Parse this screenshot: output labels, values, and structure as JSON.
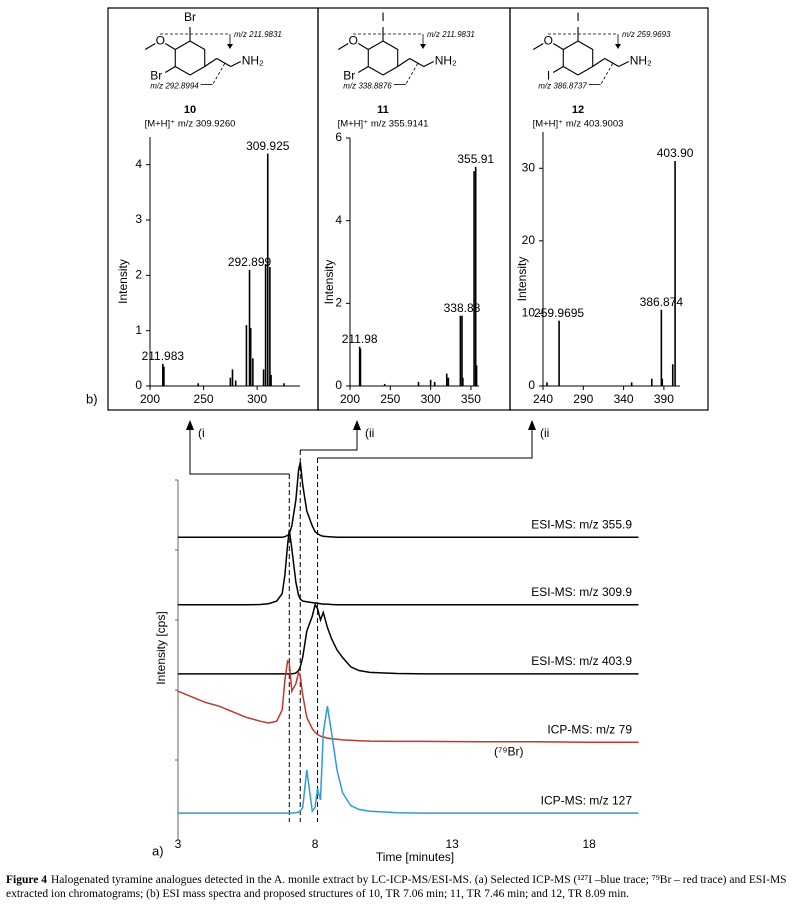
{
  "panel_labels": {
    "b": "b)",
    "a": "a)"
  },
  "structures": [
    {
      "top": "Br",
      "bottom": "Br",
      "oxygen": "O",
      "amine": "NH₂",
      "fragment_top": "m/z 211.9831",
      "fragment_bottom": "m/z 292.8994",
      "compound": "10",
      "ion": "[M+H]⁺ m/z 309.9260"
    },
    {
      "top": "I",
      "bottom": "Br",
      "oxygen": "O",
      "amine": "NH₂",
      "fragment_top": "m/z 211.9831",
      "fragment_bottom": "m/z 338.8876",
      "compound": "11",
      "ion": "[M+H]⁺ m/z 355.9141"
    },
    {
      "top": "I",
      "bottom": "I",
      "oxygen": "O",
      "amine": "NH₂",
      "fragment_top": "m/z 259.9693",
      "fragment_bottom": "m/z 386.8737",
      "compound": "12",
      "ion": "[M+H]⁺ m/z 403.9003"
    }
  ],
  "chart_data": [
    {
      "type": "bar",
      "y_label": "Intensity",
      "color": "#000000",
      "x": [
        211.98,
        213,
        245,
        275,
        277,
        280,
        290,
        292.9,
        294,
        296,
        306,
        307.9,
        309.9,
        311.9,
        313,
        325
      ],
      "values": [
        0.4,
        0.35,
        0.05,
        0.15,
        0.3,
        0.1,
        1.1,
        2.1,
        1.05,
        0.5,
        0.3,
        2.2,
        4.2,
        2.15,
        0.2,
        0.05
      ],
      "annotations": [
        {
          "text": "211.983",
          "x": 211.983,
          "y": 0.4
        },
        {
          "text": "292.899",
          "x": 292.899,
          "y": 2.1
        },
        {
          "text": "309.925",
          "x": 309.925,
          "y": 4.2
        }
      ],
      "xlim": [
        200,
        340
      ],
      "xticks": [
        200,
        250,
        300
      ],
      "ylim": [
        0,
        4.5
      ],
      "yticks": [
        0,
        1,
        2,
        3,
        4
      ]
    },
    {
      "type": "bar",
      "y_label": "Intensity",
      "color": "#000000",
      "x": [
        211.98,
        213,
        243,
        285,
        300,
        305,
        320,
        322,
        336.9,
        338.9,
        340,
        353.9,
        355.9,
        357
      ],
      "values": [
        0.95,
        0.9,
        0.05,
        0.1,
        0.15,
        0.1,
        0.3,
        0.2,
        1.7,
        1.7,
        0.2,
        5.2,
        5.3,
        0.5
      ],
      "annotations": [
        {
          "text": "211.98",
          "x": 211.98,
          "y": 0.95
        },
        {
          "text": "338.88",
          "x": 338.88,
          "y": 1.7
        },
        {
          "text": "355.91",
          "x": 355.91,
          "y": 5.3
        }
      ],
      "xlim": [
        200,
        360
      ],
      "xticks": [
        200,
        250,
        300,
        350
      ],
      "ylim": [
        0,
        6
      ],
      "yticks": [
        0,
        2,
        4,
        6
      ]
    },
    {
      "type": "bar",
      "y_label": "Intensity",
      "color": "#000000",
      "x": [
        245,
        259.97,
        350,
        375,
        386.87,
        388,
        401,
        403.9
      ],
      "values": [
        0.5,
        9,
        0.5,
        1,
        10.5,
        1,
        3,
        31
      ],
      "annotations": [
        {
          "text": "259.9695",
          "x": 259.9695,
          "y": 9
        },
        {
          "text": "386.874",
          "x": 386.874,
          "y": 10.5
        },
        {
          "text": "403.90",
          "x": 403.9,
          "y": 31
        }
      ],
      "xlim": [
        240,
        410
      ],
      "xticks": [
        240,
        290,
        340,
        390
      ],
      "ylim": [
        0,
        35
      ],
      "yticks": [
        0,
        10,
        20,
        30
      ]
    },
    {
      "type": "line",
      "x_label": "Time [minutes]",
      "y_label": "Intensity [cps]",
      "x": [
        3,
        3.5,
        4,
        4.5,
        5,
        5.5,
        6,
        6.3,
        6.6,
        6.8,
        6.9,
        7.0,
        7.06,
        7.15,
        7.3,
        7.4,
        7.46,
        7.55,
        7.7,
        7.9,
        8.0,
        8.09,
        8.2,
        8.3,
        8.45,
        8.6,
        8.8,
        9.0,
        9.3,
        9.6,
        10,
        11,
        12,
        14,
        16,
        18,
        19.8
      ],
      "series": [
        {
          "name": "ESI-MS: m/z 355.9",
          "color": "#000000",
          "values": [
            82,
            82,
            82,
            82,
            82,
            82,
            82,
            82,
            82,
            82,
            82.2,
            82.5,
            83,
            85,
            92,
            100,
            102,
            96,
            89,
            85,
            83.5,
            83,
            82.5,
            82.3,
            82.2,
            82.1,
            82,
            82,
            82,
            82,
            82,
            82,
            82,
            82,
            82,
            82,
            82
          ]
        },
        {
          "name": "ESI-MS: m/z 309.9",
          "color": "#000000",
          "values": [
            64,
            64,
            64,
            64,
            64,
            64,
            64.1,
            64.3,
            65,
            67,
            72,
            80,
            84,
            79,
            70,
            66.5,
            65.5,
            65,
            64.8,
            64.6,
            64.5,
            64.4,
            64.3,
            64.2,
            64.2,
            64.1,
            64,
            64,
            64,
            64,
            64,
            64,
            64,
            64,
            64,
            64,
            64
          ]
        },
        {
          "name": "ESI-MS: m/z 403.9",
          "color": "#000000",
          "values": [
            45.6,
            45.6,
            45.6,
            45.6,
            45.6,
            45.6,
            45.6,
            45.6,
            45.6,
            45.6,
            45.6,
            45.6,
            45.6,
            45.6,
            45.8,
            46.5,
            47.5,
            50,
            57,
            61,
            64,
            63,
            60,
            62,
            58,
            55,
            52,
            50,
            47.5,
            46.5,
            46,
            45.7,
            45.6,
            45.6,
            45.6,
            45.6,
            45.6
          ]
        },
        {
          "name": "ICP-MS: m/z 79",
          "sublabel": "(⁷⁹Br)",
          "color": "#c0392b",
          "values": [
            41,
            39.5,
            38,
            37,
            35.5,
            34,
            33,
            32.5,
            33,
            36,
            44,
            49,
            48.5,
            41,
            43,
            46,
            45,
            40,
            34,
            31,
            30,
            29.5,
            29,
            28.8,
            28.5,
            28.3,
            28.2,
            28,
            27.9,
            27.8,
            27.7,
            27.6,
            27.6,
            27.5,
            27.5,
            27.4,
            27.4
          ]
        },
        {
          "name": "ICP-MS: m/z 127",
          "color": "#2e9bd6",
          "values": [
            8.5,
            8.5,
            8.5,
            8.5,
            8.5,
            8.5,
            8.5,
            8.5,
            8.5,
            8.5,
            8.5,
            8.5,
            8.5,
            8.5,
            8.6,
            8.8,
            9,
            10,
            20,
            9,
            10,
            15,
            12,
            30,
            37,
            30,
            20,
            14,
            10.5,
            9.5,
            9,
            8.6,
            8.5,
            8.5,
            8.5,
            8.5,
            8.5
          ]
        }
      ],
      "retention_times": [
        7.06,
        7.46,
        8.09
      ],
      "arrow_labels": [
        "(i",
        "(ii",
        "(ii"
      ],
      "xlim": [
        3,
        20
      ],
      "xticks": [
        3,
        8,
        13,
        18
      ],
      "ylim": [
        0,
        105
      ]
    }
  ],
  "caption": {
    "label": "Figure 4",
    "text": "Halogenated tyramine analogues detected in the A. monile extract by LC-ICP-MS/ESI-MS. (a) Selected ICP-MS (¹²⁷I –blue trace; ⁷⁹Br – red trace) and ESI-MS extracted ion chromatograms; (b) ESI mass spectra and proposed structures of 10, TR 7.06 min; 11, TR 7.46 min; and 12, TR 8.09 min."
  }
}
